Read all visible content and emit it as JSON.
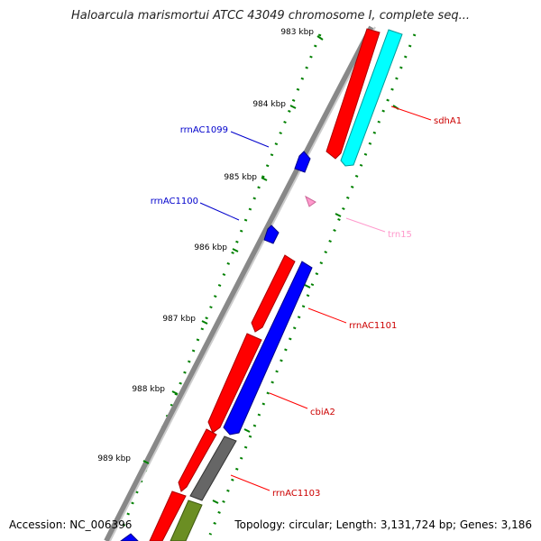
{
  "title": "Haloarcula marismortui ATCC 43049 chromosome I, complete seq...",
  "accession": "Accession: NC_006396",
  "topology": "Topology: circular; Length: 3,131,724 bp; Genes: 3,186",
  "ticks": [
    "983 kbp",
    "984 kbp",
    "985 kbp",
    "986 kbp",
    "987 kbp",
    "988 kbp",
    "989 kbp"
  ],
  "gene_labels": [
    "sdhA1",
    "trn15",
    "rrnAC1101",
    "cbiA2",
    "rrnAC1103",
    "rrnAC1099",
    "rrnAC1100"
  ],
  "colors": {
    "forward": "#ff0000",
    "reverse_blue": "#0000ff",
    "cyan": "#00ffff",
    "trna": "#ff99cc",
    "olive": "#6b8e23",
    "gray": "#666666",
    "tick": "#008000",
    "backbone": "#888888"
  }
}
